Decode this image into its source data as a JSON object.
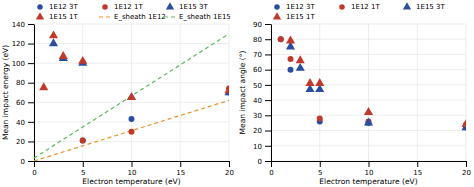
{
  "chart_data": [
    {
      "type": "scatter",
      "x_label": "Electron temperature (eV)",
      "y_label": "Mean impact energy (eV)",
      "xlim": [
        0,
        20
      ],
      "ylim": [
        0,
        140
      ],
      "xticks": [
        0,
        5,
        10,
        15,
        20
      ],
      "yticks": [
        0,
        20,
        40,
        60,
        80,
        100,
        120,
        140
      ],
      "grid": true,
      "legend": "top",
      "series": [
        {
          "name": "1E12 3T",
          "color": "#2b4da0",
          "marker": "circle",
          "x": [
            5,
            10,
            20
          ],
          "values": [
            21,
            43,
            70
          ]
        },
        {
          "name": "1E12 1T",
          "color": "#c0392b",
          "marker": "circle",
          "x": [
            5,
            10,
            20
          ],
          "values": [
            21,
            30,
            74
          ]
        },
        {
          "name": "1E15 3T",
          "color": "#2b4da0",
          "marker": "triangle",
          "x": [
            2,
            3,
            5,
            10,
            20
          ],
          "values": [
            120,
            105,
            100,
            65,
            70
          ]
        },
        {
          "name": "1E15 1T",
          "color": "#c0392b",
          "marker": "triangle",
          "x": [
            1,
            2,
            3,
            5,
            10,
            20
          ],
          "values": [
            75,
            128,
            107,
            102,
            65,
            72
          ]
        },
        {
          "name": "E_sheath 1E12",
          "type": "line",
          "line_style": "dashed",
          "color": "#e8922a",
          "x": [
            0,
            20
          ],
          "values": [
            0,
            62
          ]
        },
        {
          "name": "E_sheath 1E15",
          "type": "line",
          "line_style": "dashed",
          "color": "#5cb85c",
          "x": [
            0,
            20
          ],
          "values": [
            3,
            130
          ]
        }
      ]
    },
    {
      "type": "scatter",
      "x_label": "Electron temperature (eV)",
      "y_label": "Mean impact angle (°)",
      "xlim": [
        0,
        20
      ],
      "ylim": [
        0,
        90
      ],
      "xticks": [
        0,
        5,
        10,
        15,
        20
      ],
      "yticks": [
        0,
        10,
        20,
        30,
        40,
        50,
        60,
        70,
        80,
        90
      ],
      "grid": true,
      "legend": "top",
      "series": [
        {
          "name": "1E12 3T",
          "color": "#2b4da0",
          "marker": "circle",
          "x": [
            1,
            2,
            5,
            10,
            20
          ],
          "values": [
            80,
            60,
            26,
            25,
            22
          ]
        },
        {
          "name": "1E12 1T",
          "color": "#c0392b",
          "marker": "circle",
          "x": [
            1,
            2,
            5,
            10,
            20
          ],
          "values": [
            80,
            67,
            28,
            26,
            24
          ]
        },
        {
          "name": "1E15 3T",
          "color": "#2b4da0",
          "marker": "triangle",
          "x": [
            2,
            3,
            4,
            5,
            10,
            20
          ],
          "values": [
            75,
            61,
            47,
            47,
            25,
            22
          ]
        },
        {
          "name": "1E15 1T",
          "color": "#c0392b",
          "marker": "triangle",
          "x": [
            2,
            3,
            4,
            5,
            10,
            20
          ],
          "values": [
            79,
            66,
            51,
            51,
            32,
            24
          ]
        }
      ]
    }
  ]
}
